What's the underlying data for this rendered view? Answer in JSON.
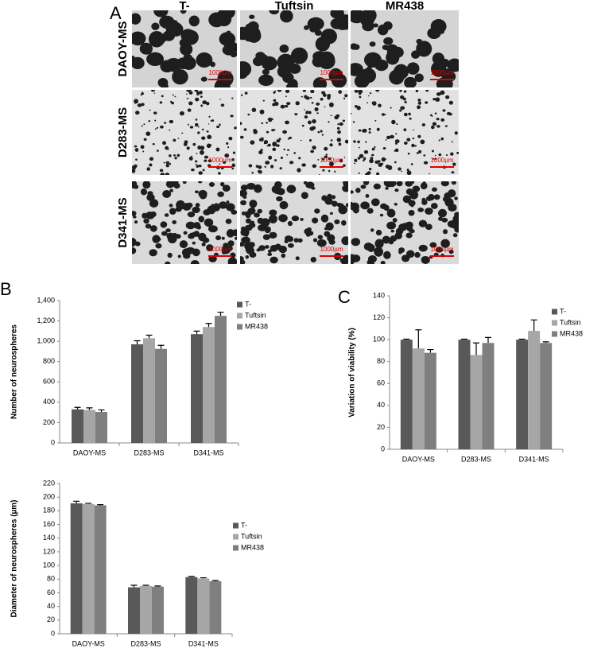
{
  "panel_a": {
    "letter": "A",
    "columns": [
      "T-",
      "Tuftsin",
      "MR438"
    ],
    "rows": [
      "DAOY-MS",
      "D283-MS",
      "D341-MS"
    ],
    "scale_bar": "1000µm"
  },
  "chart_data": [
    {
      "type": "bar",
      "panel": "B",
      "ylabel": "Number of neurospheres",
      "categories": [
        "DAOY-MS",
        "D283-MS",
        "D341-MS"
      ],
      "series": [
        {
          "name": "T-",
          "color": "#595959",
          "values": [
            330,
            970,
            1070
          ],
          "errors": [
            20,
            35,
            30
          ]
        },
        {
          "name": "Tuftsin",
          "color": "#a6a6a6",
          "values": [
            325,
            1030,
            1140
          ],
          "errors": [
            20,
            30,
            35
          ]
        },
        {
          "name": "MR438",
          "color": "#7f7f7f",
          "values": [
            305,
            925,
            1250
          ],
          "errors": [
            20,
            35,
            35
          ]
        }
      ],
      "ylim": [
        0,
        1400
      ],
      "yticks": [
        0,
        200,
        400,
        600,
        800,
        {
          "value": 1000,
          "label": "1,000"
        },
        {
          "value": 1200,
          "label": "1,200"
        },
        {
          "value": 1400,
          "label": "1,400"
        }
      ]
    },
    {
      "type": "bar",
      "panel": "C",
      "ylabel": "Variation of viability (%)",
      "categories": [
        "DAOY-MS",
        "D283-MS",
        "D341-MS"
      ],
      "series": [
        {
          "name": "T-",
          "color": "#595959",
          "values": [
            100,
            100,
            100
          ],
          "errors": [
            0.5,
            0.5,
            0.5
          ]
        },
        {
          "name": "Tuftsin",
          "color": "#a6a6a6",
          "values": [
            92,
            86,
            108
          ],
          "errors": [
            17,
            11,
            10
          ]
        },
        {
          "name": "MR438",
          "color": "#7f7f7f",
          "values": [
            88,
            97,
            97
          ],
          "errors": [
            3,
            5,
            1
          ]
        }
      ],
      "ylim": [
        0,
        140
      ],
      "yticks": [
        0,
        20,
        40,
        60,
        80,
        100,
        120,
        140
      ]
    },
    {
      "type": "bar",
      "ylabel": "Diameter of neurospheres (µm)",
      "categories": [
        "DAOY-MS",
        "D283-MS",
        "D341-MS"
      ],
      "series": [
        {
          "name": "T-",
          "color": "#595959",
          "values": [
            191,
            68,
            83
          ],
          "errors": [
            3,
            3,
            1
          ]
        },
        {
          "name": "Tuftsin",
          "color": "#a6a6a6",
          "values": [
            190,
            70,
            81
          ],
          "errors": [
            1,
            1,
            1
          ]
        },
        {
          "name": "MR438",
          "color": "#7f7f7f",
          "values": [
            188,
            69,
            77
          ],
          "errors": [
            1,
            1,
            1
          ]
        }
      ],
      "ylim": [
        0,
        220
      ],
      "yticks": [
        0,
        20,
        40,
        60,
        80,
        100,
        120,
        140,
        160,
        180,
        200,
        220
      ]
    }
  ]
}
